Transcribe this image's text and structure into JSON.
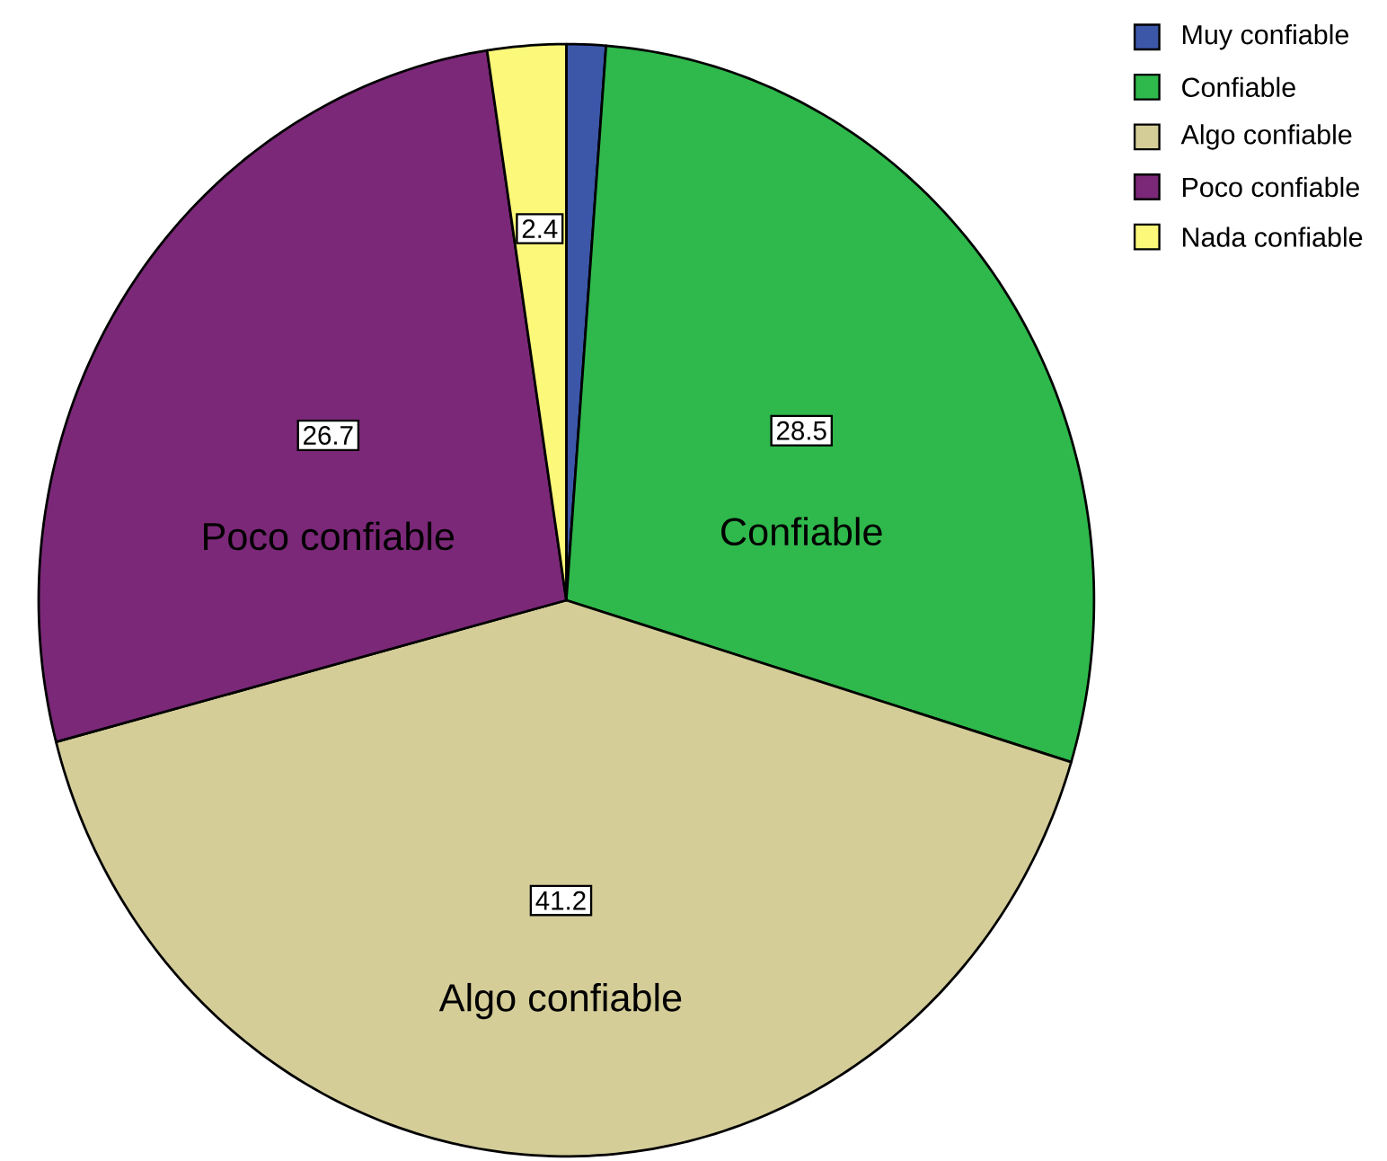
{
  "chart_data": {
    "type": "pie",
    "categories": [
      "Muy confiable",
      "Confiable",
      "Algo confiable",
      "Poco confiable",
      "Nada confiable"
    ],
    "values": [
      1.2,
      28.5,
      41.2,
      26.7,
      2.4
    ],
    "colors": [
      "#3c56a8",
      "#2fb84b",
      "#d4cd98",
      "#7b2878",
      "#fbf87a"
    ],
    "value_labels": [
      null,
      "28.5",
      "41.2",
      "26.7",
      "2.4"
    ],
    "annotations": [
      {
        "text": "Confiable",
        "x": "Confiable"
      },
      {
        "text": "Algo confiable",
        "x": "Algo confiable"
      },
      {
        "text": "Poco confiable",
        "x": "Poco confiable"
      }
    ],
    "legend": "top right"
  }
}
